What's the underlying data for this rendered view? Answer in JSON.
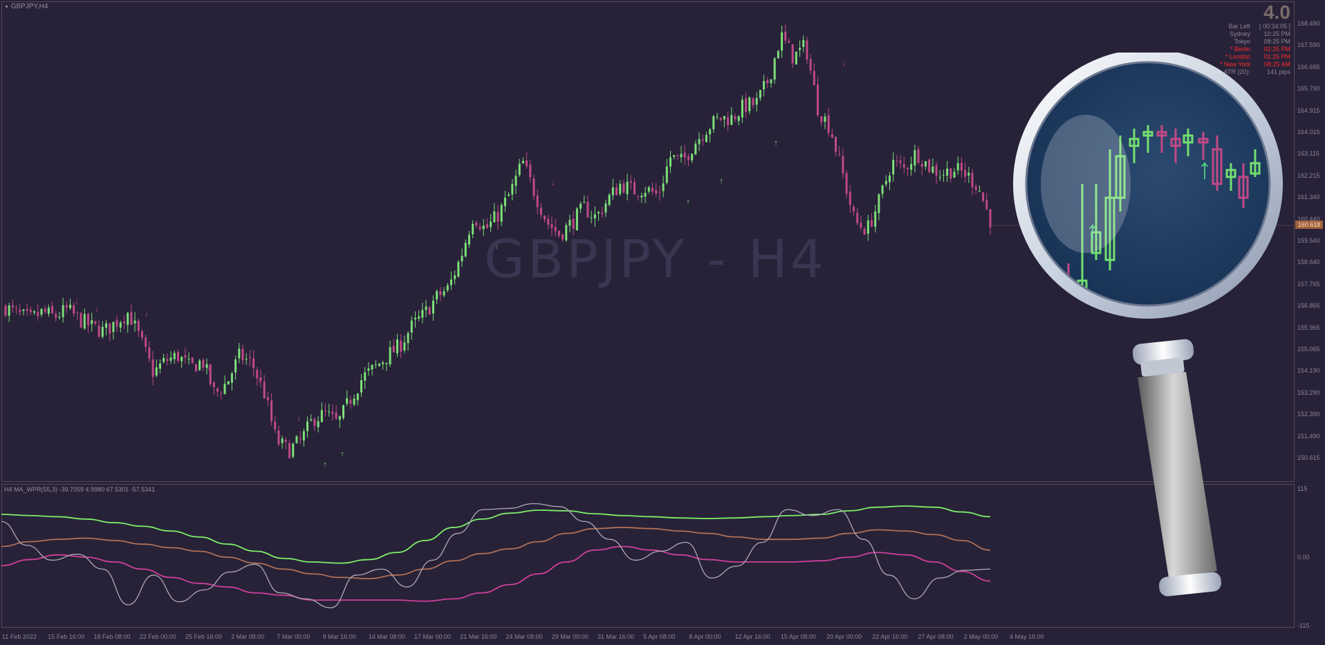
{
  "chart": {
    "title": "GBPJPY,H4",
    "watermark": "GBPJPY - H4",
    "version": "4.0",
    "current_price": "160.618",
    "price_axis": [
      "168.490",
      "167.590",
      "166.695",
      "165.790",
      "164.915",
      "164.015",
      "163.115",
      "162.215",
      "161.340",
      "160.440",
      "159.540",
      "158.640",
      "157.765",
      "156.865",
      "155.965",
      "155.065",
      "154.190",
      "153.290",
      "152.390",
      "151.490",
      "150.615"
    ],
    "date_axis": [
      "11 Feb 2022",
      "15 Feb 16:00",
      "18 Feb 08:00",
      "23 Feb 00:00",
      "25 Feb 16:00",
      "2 Mar 08:00",
      "7 Mar 00:00",
      "9 Mar 16:00",
      "14 Mar 08:00",
      "17 Mar 00:00",
      "21 Mar 16:00",
      "24 Mar 08:00",
      "29 Mar 00:00",
      "31 Mar 16:00",
      "5 Apr 08:00",
      "8 Apr 00:00",
      "12 Apr 16:00",
      "15 Apr 08:00",
      "20 Apr 00:00",
      "22 Apr 16:00",
      "27 Apr 08:00",
      "2 May 00:00",
      "4 May 16:00"
    ]
  },
  "info_panel": [
    {
      "label": "Bar Left",
      "value": "[ 00:34:05 ]",
      "color": "#8d8594"
    },
    {
      "label": "Sydney",
      "value": "10:25 PM",
      "color": "#8d8594"
    },
    {
      "label": "Tokyo",
      "value": "08:25 PM",
      "color": "#8d8594"
    },
    {
      "label": "* Berlin",
      "value": "02:25 PM",
      "color": "#ff2a2a"
    },
    {
      "label": "* London",
      "value": "01:25 PM",
      "color": "#ff2a2a"
    },
    {
      "label": "* New York",
      "value": "08:25 AM",
      "color": "#ff2a2a"
    },
    {
      "label": "ATR (20):",
      "value": "141 pips",
      "color": "#8d8594"
    }
  ],
  "oscillator": {
    "title": "H4 MA_WPR(55,3) -39.7059 4.9980 67.5301 -57.5341",
    "axis": [
      "115",
      "0.00",
      "-115"
    ]
  },
  "colors": {
    "background": "#272238",
    "bull": "#7ee07a",
    "bear": "#c04a86",
    "line_green": "#7ef06a",
    "line_orange": "#b07058",
    "line_pink": "#d0409a",
    "line_gray": "#b0aab8",
    "arrow_up": "#7ee07a",
    "arrow_down": "#c04a86"
  },
  "chart_data": {
    "type": "candlestick",
    "price_path": [
      156.8,
      156.5,
      156.3,
      156.6,
      156.4,
      156.7,
      156.3,
      156.0,
      155.8,
      156.2,
      156.6,
      155.4,
      154.1,
      154.6,
      154.8,
      154.3,
      154.6,
      153.2,
      153.7,
      154.8,
      154.5,
      153.3,
      151.3,
      150.9,
      151.3,
      152.2,
      152.4,
      152.0,
      153.0,
      153.9,
      154.3,
      154.8,
      155.2,
      156.0,
      156.5,
      157.2,
      157.6,
      158.9,
      160.6,
      160.0,
      160.6,
      161.5,
      162.8,
      161.5,
      160.3,
      159.8,
      160.3,
      160.9,
      160.5,
      161.3,
      161.9,
      161.6,
      161.7,
      161.4,
      163.0,
      162.8,
      163.6,
      164.2,
      164.6,
      164.6,
      165.1,
      165.2,
      166.2,
      168.0,
      167.1,
      167.6,
      165.0,
      164.2,
      162.3,
      160.3,
      160.0,
      161.2,
      162.8,
      162.5,
      163.2,
      162.6,
      162.3,
      162.5,
      162.3,
      161.8,
      160.4
    ],
    "price_range": [
      150.6,
      168.5
    ],
    "osc_range": [
      -115,
      115
    ],
    "series": [
      {
        "name": "green",
        "values": [
          72,
          70,
          68,
          64,
          58,
          52,
          44,
          34,
          22,
          10,
          -2,
          -8,
          -10,
          -4,
          8,
          28,
          50,
          64,
          74,
          79,
          78,
          73,
          70,
          68,
          66,
          65,
          66,
          68,
          70,
          72,
          78,
          84,
          86,
          84,
          76,
          68
        ]
      },
      {
        "name": "orange",
        "values": [
          18,
          26,
          30,
          32,
          28,
          22,
          16,
          10,
          0,
          -10,
          -20,
          -28,
          -34,
          -36,
          -30,
          -20,
          -6,
          6,
          14,
          26,
          40,
          48,
          50,
          48,
          44,
          40,
          34,
          30,
          30,
          32,
          40,
          46,
          44,
          38,
          28,
          12
        ]
      },
      {
        "name": "pink",
        "values": [
          -14,
          -4,
          4,
          0,
          -8,
          -20,
          -34,
          -44,
          -50,
          -60,
          -64,
          -72,
          -72,
          -72,
          -72,
          -74,
          -70,
          -60,
          -46,
          -28,
          -8,
          12,
          18,
          12,
          4,
          -4,
          -8,
          -8,
          -8,
          -6,
          0,
          8,
          4,
          -8,
          -24,
          -40
        ]
      },
      {
        "name": "gray",
        "values": [
          60,
          20,
          -5,
          5,
          -20,
          -80,
          -30,
          -75,
          -55,
          -25,
          -12,
          -60,
          -70,
          -85,
          -30,
          -20,
          -50,
          -5,
          40,
          80,
          82,
          90,
          85,
          60,
          30,
          -5,
          10,
          25,
          -35,
          -15,
          25,
          80,
          70,
          80,
          30,
          -30,
          -70,
          -35,
          -22,
          -20
        ]
      }
    ]
  }
}
